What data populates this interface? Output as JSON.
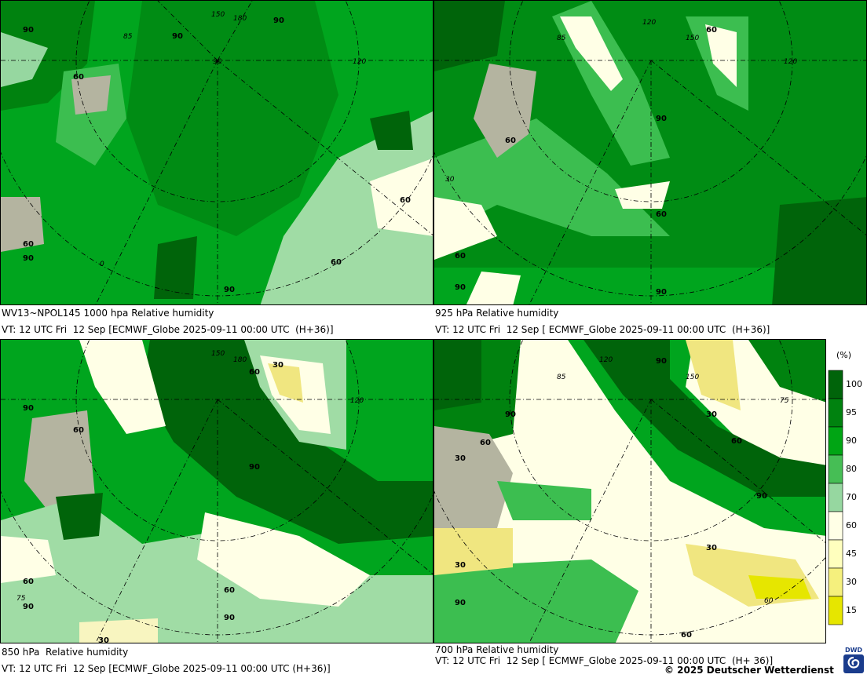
{
  "panels": [
    {
      "id": "p1000",
      "line1": "WV13~NPOL145 1000 hpa Relative humidity",
      "line2": "VT: 12 UTC Fri  12 Sep [ECMWF_Globe 2025-09-11 00:00 UTC  (H+36)]",
      "contour_labels": [
        "90",
        "60",
        "60",
        "90",
        "60",
        "90",
        "60",
        "90",
        "90"
      ]
    },
    {
      "id": "p925",
      "line1": "925 hPa Relative humidity",
      "line2": "VT: 12 UTC Fri  12 Sep [ ECMWF_Globe 2025-09-11 00:00 UTC  (H+36)]",
      "contour_labels": [
        "60",
        "60",
        "90",
        "60",
        "60",
        "90",
        "90"
      ]
    },
    {
      "id": "p850",
      "line1": "850 hPa  Relative humidity",
      "line2": "VT: 12 UTC Fri  12 Sep [ECMWF_Globe 2025-09-11 00:00 UTC (H+36)]",
      "contour_labels": [
        "30",
        "60",
        "90",
        "60",
        "90",
        "60",
        "60",
        "90",
        "90",
        "30"
      ]
    },
    {
      "id": "p700",
      "line1": "700 hPa Relative humidity",
      "line2": "VT: 12 UTC Fri  12 Sep [ ECMWF_Globe 2025-09-11 00:00 UTC  (H+ 36)]",
      "contour_labels": [
        "90",
        "90",
        "30",
        "30",
        "60",
        "60",
        "90",
        "30",
        "30",
        "90",
        "60"
      ]
    }
  ],
  "meridian_labels": [
    "150",
    "120",
    "90",
    "85",
    "180",
    "120",
    "75",
    "30",
    "0",
    "60"
  ],
  "legend": {
    "unit": "(%)",
    "ticks": [
      "100",
      "95",
      "90",
      "80",
      "70",
      "60",
      "45",
      "30",
      "15"
    ],
    "colors": [
      "#00640a",
      "#00820f",
      "#00a514",
      "#46be55",
      "#96d7a0",
      "#ffffe6",
      "#ffffbe",
      "#f5f07d",
      "#e6e600"
    ]
  },
  "copyright": "© 2025 Deutscher Wetterdienst",
  "logo_text": "DWD",
  "colors": {
    "rh100": "#00640a",
    "rh95": "#008c14",
    "rh90": "#00a51e",
    "rh80": "#3cbe50",
    "rh70": "#a0dca5",
    "rh60": "#ffffe6",
    "rh45": "#f8f5c0",
    "rh30": "#f0e680",
    "land": "#b4b4a0"
  }
}
